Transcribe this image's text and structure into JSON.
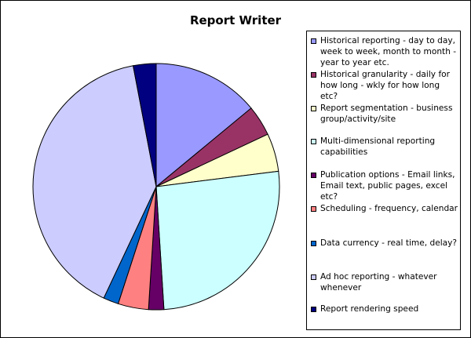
{
  "chart_data": {
    "type": "pie",
    "title": "Report Writer",
    "legend_position": "right",
    "slices": [
      {
        "label": "Historical reporting - day to day, week to week, month to month - year to year etc.",
        "value": 14,
        "color": "#9999ff"
      },
      {
        "label": "Historical granularity - daily for how long - wkly for how long etc?",
        "value": 4,
        "color": "#993366"
      },
      {
        "label": "Report segmentation - business group/activity/site",
        "value": 5,
        "color": "#ffffcc"
      },
      {
        "label": "Multi-dimensional reporting capabilities",
        "value": 26,
        "color": "#ccffff"
      },
      {
        "label": "Publication options - Email links, Email text, public pages, excel etc?",
        "value": 2,
        "color": "#660066"
      },
      {
        "label": "Scheduling - frequency, calendar",
        "value": 4,
        "color": "#ff8080"
      },
      {
        "label": "Data currency - real time, delay?",
        "value": 2,
        "color": "#0066cc"
      },
      {
        "label": "Ad hoc reporting - whatever whenever",
        "value": 40,
        "color": "#ccccff"
      },
      {
        "label": "Report rendering speed",
        "value": 3,
        "color": "#000080"
      }
    ]
  }
}
